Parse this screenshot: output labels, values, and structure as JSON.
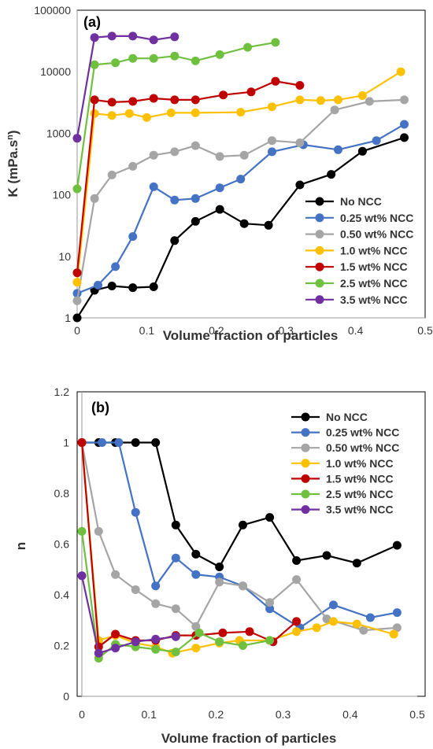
{
  "chart_data": [
    {
      "type": "line",
      "panel_label": "(a)",
      "xlabel": "Volume fraction of particles",
      "ylabel_main": "K (mPa.s",
      "ylabel_sup": "n",
      "ylabel_end": ")",
      "yscale": "log",
      "xlim": [
        0,
        0.5
      ],
      "ylim": [
        1,
        100000
      ],
      "xticks": [
        "0",
        "0.1",
        "0.2",
        "0.3",
        "0.4",
        "0.5"
      ],
      "yticks": [
        "1",
        "10",
        "100",
        "1000",
        "10000",
        "100000"
      ],
      "grid": false,
      "legend_position": "bottom-right",
      "series": [
        {
          "name": "No NCC",
          "color": "#000000",
          "x": [
            0,
            0.025,
            0.05,
            0.08,
            0.11,
            0.14,
            0.17,
            0.205,
            0.24,
            0.275,
            0.32,
            0.365,
            0.41,
            0.47
          ],
          "y": [
            1,
            2.8,
            3.3,
            3.1,
            3.2,
            18,
            37,
            58,
            34,
            32,
            145,
            215,
            510,
            850
          ]
        },
        {
          "name": "0.25 wt% NCC",
          "color": "#4472C4",
          "x": [
            0,
            0.03,
            0.055,
            0.08,
            0.11,
            0.14,
            0.17,
            0.205,
            0.235,
            0.28,
            0.325,
            0.375,
            0.43,
            0.47
          ],
          "y": [
            2.5,
            3.4,
            6.8,
            21,
            135,
            82,
            87,
            130,
            180,
            500,
            650,
            540,
            760,
            1400
          ]
        },
        {
          "name": "0.50 wt% NCC",
          "color": "#A5A5A5",
          "x": [
            0,
            0.025,
            0.05,
            0.08,
            0.11,
            0.14,
            0.17,
            0.205,
            0.24,
            0.28,
            0.32,
            0.37,
            0.42,
            0.47
          ],
          "y": [
            1.9,
            87,
            210,
            290,
            440,
            500,
            630,
            420,
            440,
            760,
            700,
            2400,
            3300,
            3500
          ]
        },
        {
          "name": "1.0 wt% NCC",
          "color": "#FFC000",
          "x": [
            0,
            0.025,
            0.05,
            0.075,
            0.1,
            0.135,
            0.17,
            0.235,
            0.28,
            0.32,
            0.35,
            0.375,
            0.41,
            0.465
          ],
          "y": [
            3.8,
            2100,
            1950,
            2100,
            1800,
            2150,
            2150,
            2200,
            2700,
            3500,
            3400,
            3500,
            4100,
            10000
          ]
        },
        {
          "name": "1.5 wt% NCC",
          "color": "#C00000",
          "x": [
            0,
            0.025,
            0.05,
            0.08,
            0.11,
            0.14,
            0.17,
            0.21,
            0.25,
            0.285,
            0.32
          ],
          "y": [
            5.4,
            3500,
            3200,
            3300,
            3700,
            3500,
            3500,
            4200,
            4700,
            7000,
            6000
          ]
        },
        {
          "name": "2.5 wt% NCC",
          "color": "#70C040",
          "x": [
            0,
            0.025,
            0.055,
            0.08,
            0.11,
            0.14,
            0.17,
            0.205,
            0.245,
            0.285
          ],
          "y": [
            125,
            13000,
            14000,
            16500,
            16500,
            18000,
            15000,
            19000,
            25000,
            30000
          ]
        },
        {
          "name": "3.5 wt% NCC",
          "color": "#7030A0",
          "x": [
            0,
            0.025,
            0.05,
            0.08,
            0.11,
            0.14
          ],
          "y": [
            830,
            36000,
            38000,
            38000,
            33000,
            37000
          ]
        }
      ]
    },
    {
      "type": "line",
      "panel_label": "(b)",
      "xlabel": "Volume fraction of particles",
      "ylabel": "n",
      "xlim": [
        0,
        0.5
      ],
      "ylim": [
        0,
        1.2
      ],
      "xticks": [
        "0",
        "0.1",
        "0.2",
        "0.3",
        "0.4",
        "0.5"
      ],
      "yticks": [
        "0",
        "0.2",
        "0.4",
        "0.6",
        "0.8",
        "1",
        "1.2"
      ],
      "grid": false,
      "legend_position": "top-right",
      "series": [
        {
          "name": "No NCC",
          "color": "#000000",
          "x": [
            0,
            0.025,
            0.05,
            0.08,
            0.11,
            0.14,
            0.17,
            0.205,
            0.24,
            0.28,
            0.32,
            0.365,
            0.41,
            0.47
          ],
          "y": [
            1,
            1,
            1,
            1,
            1,
            0.675,
            0.56,
            0.51,
            0.675,
            0.705,
            0.535,
            0.555,
            0.525,
            0.595
          ]
        },
        {
          "name": "0.25 wt% NCC",
          "color": "#4472C4",
          "x": [
            0,
            0.03,
            0.055,
            0.08,
            0.11,
            0.14,
            0.17,
            0.205,
            0.24,
            0.28,
            0.325,
            0.375,
            0.43,
            0.47
          ],
          "y": [
            1,
            1,
            1,
            0.725,
            0.435,
            0.545,
            0.48,
            0.47,
            0.435,
            0.345,
            0.27,
            0.36,
            0.31,
            0.33
          ]
        },
        {
          "name": "0.50 wt% NCC",
          "color": "#A5A5A5",
          "x": [
            0,
            0.025,
            0.05,
            0.08,
            0.11,
            0.14,
            0.17,
            0.205,
            0.24,
            0.28,
            0.32,
            0.365,
            0.42,
            0.47
          ],
          "y": [
            1,
            0.65,
            0.48,
            0.42,
            0.365,
            0.345,
            0.275,
            0.45,
            0.435,
            0.37,
            0.46,
            0.305,
            0.26,
            0.27
          ]
        },
        {
          "name": "1.0 wt% NCC",
          "color": "#FFC000",
          "x": [
            0,
            0.025,
            0.05,
            0.08,
            0.11,
            0.135,
            0.17,
            0.205,
            0.235,
            0.28,
            0.32,
            0.35,
            0.375,
            0.41,
            0.465
          ],
          "y": [
            1,
            0.22,
            0.24,
            0.21,
            0.195,
            0.17,
            0.19,
            0.21,
            0.22,
            0.22,
            0.255,
            0.27,
            0.295,
            0.285,
            0.245
          ]
        },
        {
          "name": "1.5 wt% NCC",
          "color": "#C00000",
          "x": [
            0,
            0.025,
            0.05,
            0.08,
            0.11,
            0.14,
            0.17,
            0.21,
            0.25,
            0.285,
            0.32
          ],
          "y": [
            1,
            0.195,
            0.245,
            0.22,
            0.22,
            0.24,
            0.24,
            0.25,
            0.255,
            0.215,
            0.295
          ]
        },
        {
          "name": "2.5 wt% NCC",
          "color": "#70C040",
          "x": [
            0,
            0.025,
            0.05,
            0.08,
            0.11,
            0.14,
            0.175,
            0.205,
            0.24,
            0.28
          ],
          "y": [
            0.65,
            0.15,
            0.205,
            0.195,
            0.185,
            0.175,
            0.25,
            0.215,
            0.2,
            0.22
          ]
        },
        {
          "name": "3.5 wt% NCC",
          "color": "#7030A0",
          "x": [
            0,
            0.025,
            0.05,
            0.08,
            0.11,
            0.14
          ],
          "y": [
            0.475,
            0.17,
            0.19,
            0.215,
            0.225,
            0.235
          ]
        }
      ]
    }
  ]
}
